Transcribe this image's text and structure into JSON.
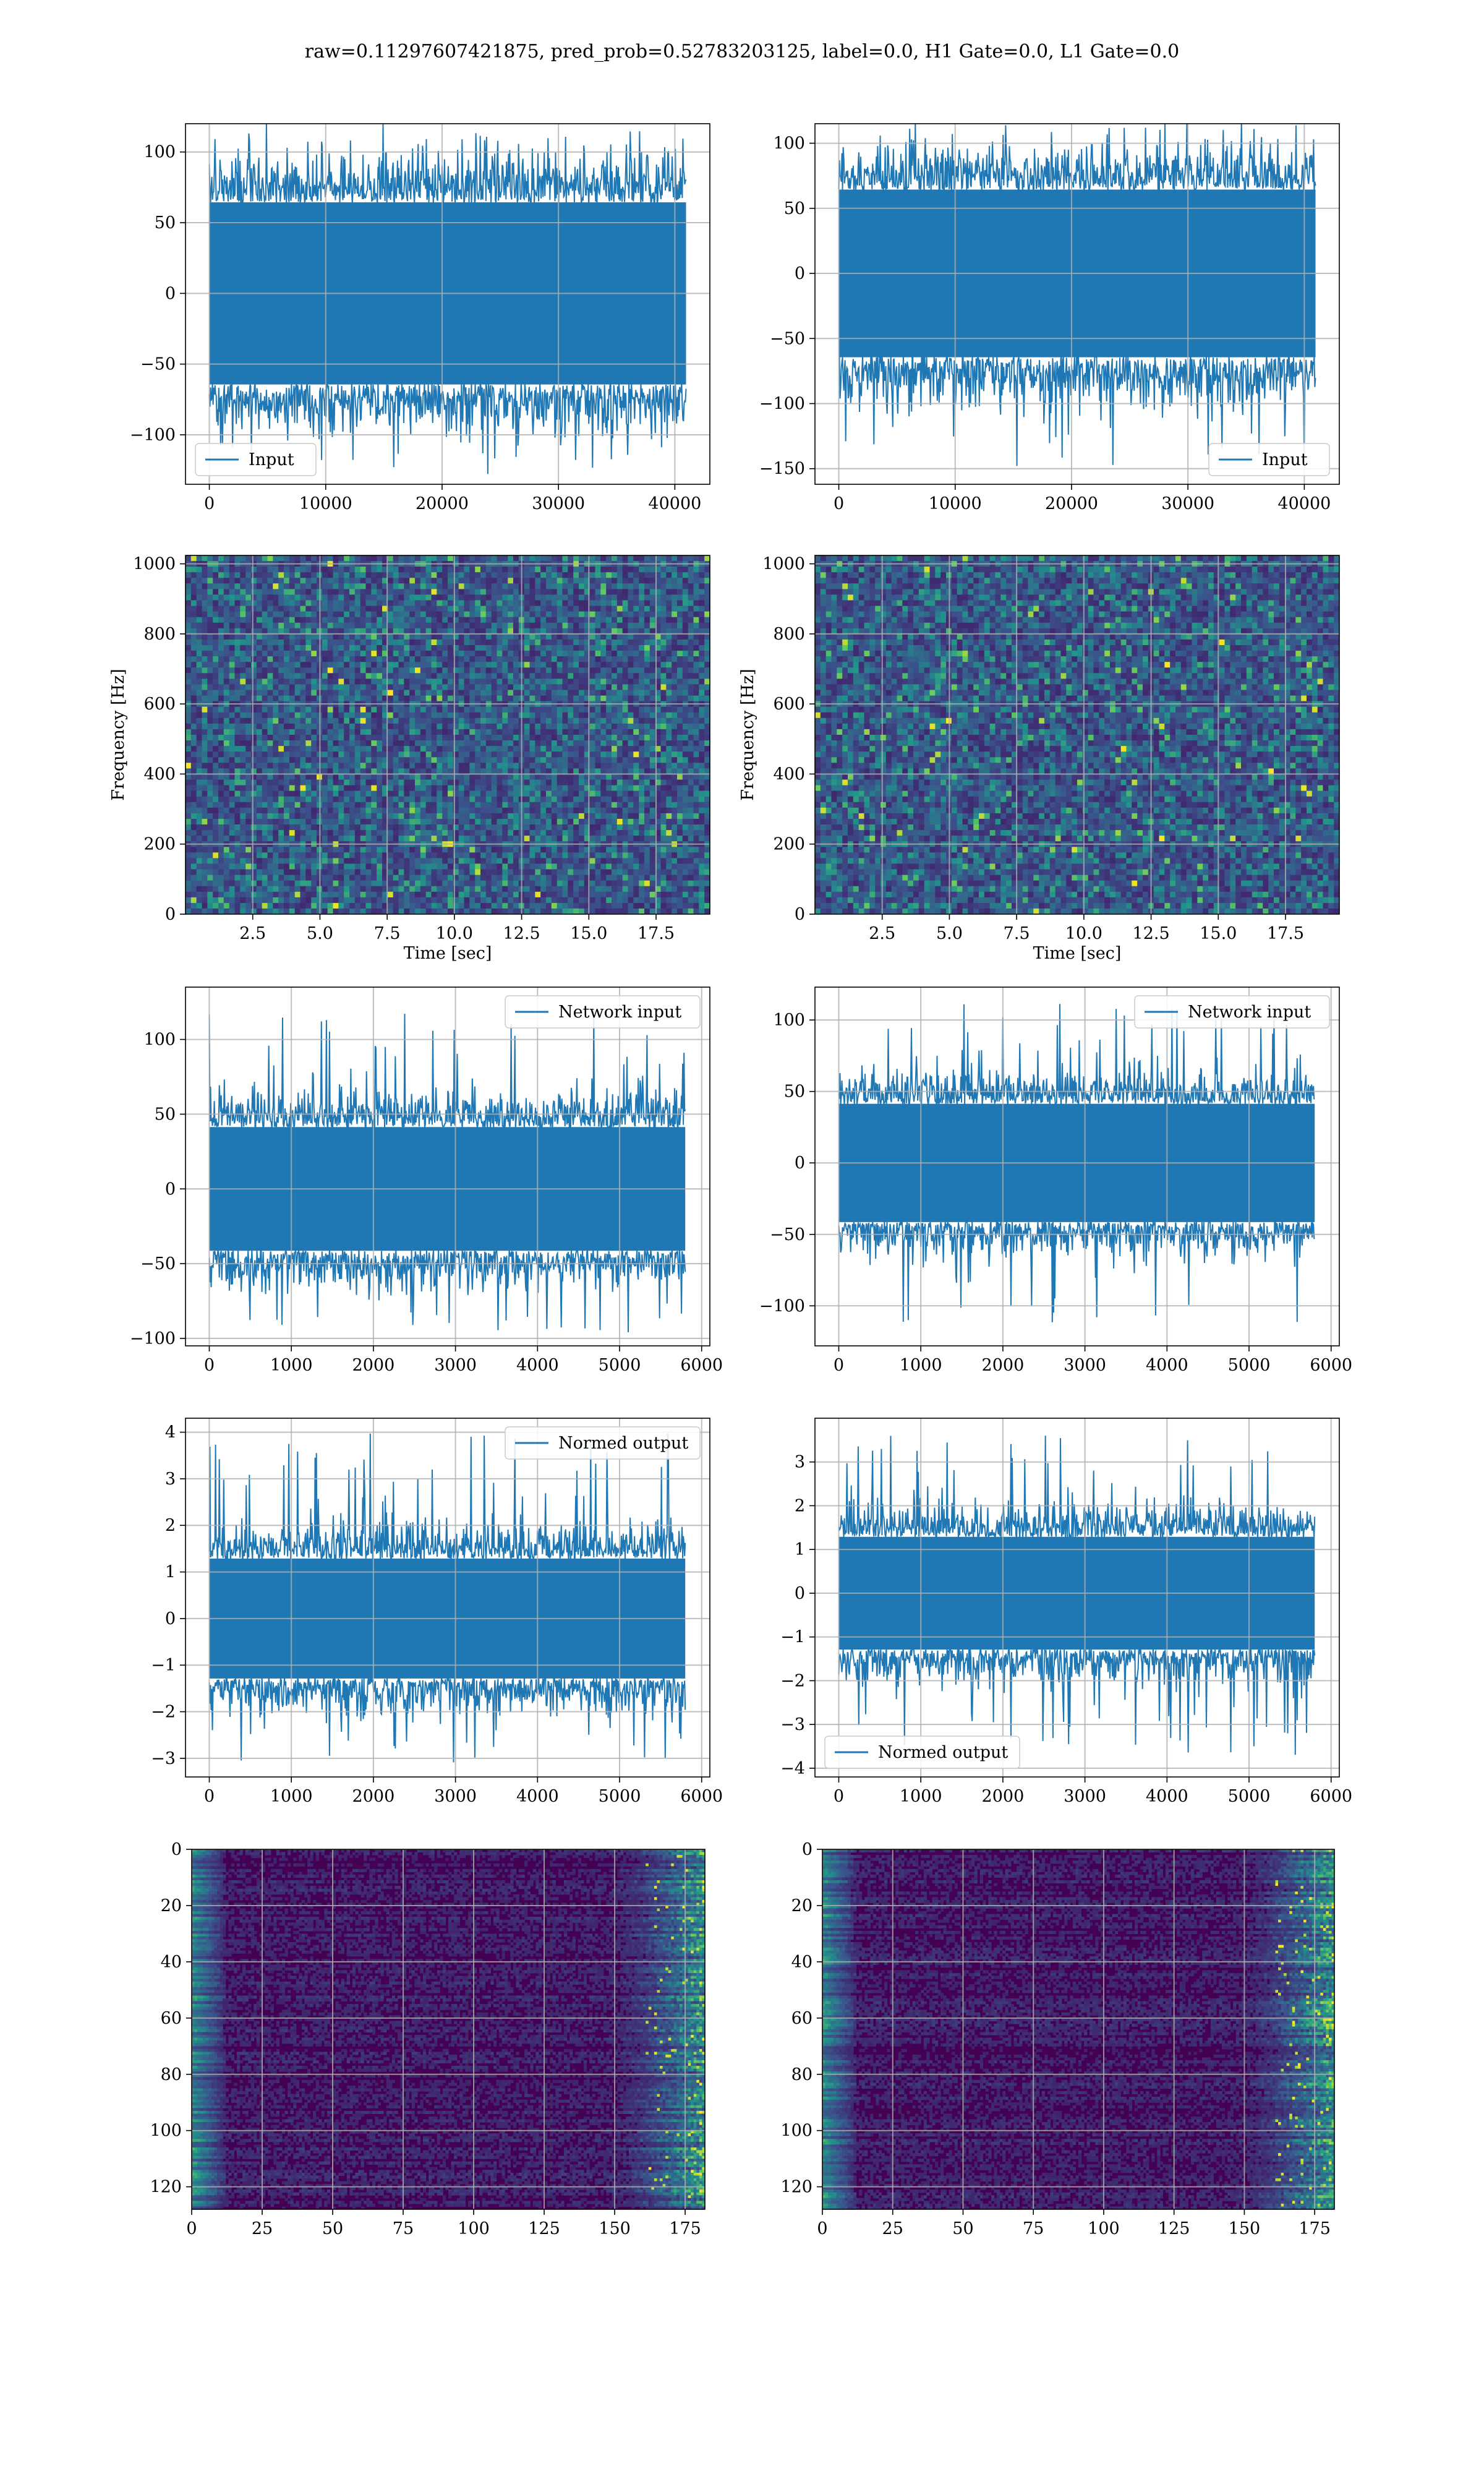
{
  "title": "raw=0.11297607421875, pred_prob=0.52783203125, label=0.0, H1 Gate=0.0, L1 Gate=0.0",
  "colors": {
    "line": "#1f77b4",
    "grid": "#b0b0b0",
    "viridis_dark": "#440154",
    "viridis_mid": "#21918c",
    "viridis_bright": "#fde725"
  },
  "chart_data": [
    {
      "id": "input-h1",
      "type": "line",
      "legend": "Input",
      "legend_loc": "lower left",
      "xlim": [
        -2048,
        43008
      ],
      "ylim": [
        -135,
        120
      ],
      "xticks": [
        0,
        10000,
        20000,
        30000,
        40000
      ],
      "yticks": [
        -100,
        -50,
        0,
        50,
        100
      ],
      "grid": true,
      "series": [
        {
          "name": "Input",
          "n_points": 40960,
          "envelope": [
            -70,
            70
          ],
          "peak_range": [
            -125,
            115
          ]
        }
      ]
    },
    {
      "id": "input-l1",
      "type": "line",
      "legend": "Input",
      "legend_loc": "lower right",
      "xlim": [
        -2048,
        43008
      ],
      "ylim": [
        -162,
        115
      ],
      "xticks": [
        0,
        10000,
        20000,
        30000,
        40000
      ],
      "yticks": [
        -150,
        -100,
        -50,
        0,
        50,
        100
      ],
      "grid": true,
      "series": [
        {
          "name": "Input",
          "n_points": 40960,
          "envelope": [
            -70,
            70
          ],
          "peak_range": [
            -150,
            118
          ]
        }
      ]
    },
    {
      "id": "spectrogram-h1",
      "type": "heatmap",
      "xlabel": "Time [sec]",
      "ylabel": "Frequency [Hz]",
      "xlim": [
        0,
        19.5
      ],
      "ylim": [
        0,
        1024
      ],
      "xticks": [
        2.5,
        5.0,
        7.5,
        10.0,
        12.5,
        15.0,
        17.5
      ],
      "yticks": [
        0,
        200,
        400,
        600,
        800,
        1000
      ],
      "grid": true,
      "colormap": "viridis"
    },
    {
      "id": "spectrogram-l1",
      "type": "heatmap",
      "xlabel": "Time [sec]",
      "ylabel": "Frequency [Hz]",
      "xlim": [
        0,
        19.5
      ],
      "ylim": [
        0,
        1024
      ],
      "xticks": [
        2.5,
        5.0,
        7.5,
        10.0,
        12.5,
        15.0,
        17.5
      ],
      "yticks": [
        0,
        200,
        400,
        600,
        800,
        1000
      ],
      "grid": true,
      "colormap": "viridis"
    },
    {
      "id": "network-input-h1",
      "type": "line",
      "legend": "Network input",
      "legend_loc": "upper right",
      "xlim": [
        -290,
        6100
      ],
      "ylim": [
        -105,
        135
      ],
      "xticks": [
        0,
        1000,
        2000,
        3000,
        4000,
        5000,
        6000
      ],
      "yticks": [
        -100,
        -50,
        0,
        50,
        100
      ],
      "grid": true,
      "series": [
        {
          "name": "Network input",
          "n_points": 5800,
          "envelope": [
            -45,
            45
          ],
          "peak_range": [
            -97,
            125
          ]
        }
      ]
    },
    {
      "id": "network-input-l1",
      "type": "line",
      "legend": "Network input",
      "legend_loc": "upper right",
      "xlim": [
        -290,
        6100
      ],
      "ylim": [
        -128,
        123
      ],
      "xticks": [
        0,
        1000,
        2000,
        3000,
        4000,
        5000,
        6000
      ],
      "yticks": [
        -100,
        -50,
        0,
        50,
        100
      ],
      "grid": true,
      "series": [
        {
          "name": "Network input",
          "n_points": 5800,
          "envelope": [
            -45,
            45
          ],
          "peak_range": [
            -113,
            114
          ]
        }
      ]
    },
    {
      "id": "normed-output-h1",
      "type": "line",
      "legend": "Normed output",
      "legend_loc": "upper right",
      "xlim": [
        -290,
        6100
      ],
      "ylim": [
        -3.4,
        4.3
      ],
      "xticks": [
        0,
        1000,
        2000,
        3000,
        4000,
        5000,
        6000
      ],
      "yticks": [
        -3,
        -2,
        -1,
        0,
        1,
        2,
        3,
        4
      ],
      "grid": true,
      "series": [
        {
          "name": "Normed output",
          "n_points": 5800,
          "envelope": [
            -1.4,
            1.4
          ],
          "peak_range": [
            -3.1,
            4.0
          ]
        }
      ]
    },
    {
      "id": "normed-output-l1",
      "type": "line",
      "legend": "Normed output",
      "legend_loc": "lower left",
      "xlim": [
        -290,
        6100
      ],
      "ylim": [
        -4.2,
        4.0
      ],
      "xticks": [
        0,
        1000,
        2000,
        3000,
        4000,
        5000,
        6000
      ],
      "yticks": [
        -4,
        -3,
        -2,
        -1,
        0,
        1,
        2,
        3
      ],
      "grid": true,
      "series": [
        {
          "name": "Normed output",
          "n_points": 5800,
          "envelope": [
            -1.4,
            1.4
          ],
          "peak_range": [
            -3.7,
            3.6
          ]
        }
      ]
    },
    {
      "id": "feature-map-h1",
      "type": "heatmap",
      "xlim": [
        0,
        182
      ],
      "ylim": [
        128,
        0
      ],
      "xticks": [
        0,
        25,
        50,
        75,
        100,
        125,
        150,
        175
      ],
      "yticks": [
        0,
        20,
        40,
        60,
        80,
        100,
        120
      ],
      "grid": true,
      "colormap": "viridis"
    },
    {
      "id": "feature-map-l1",
      "type": "heatmap",
      "xlim": [
        0,
        182
      ],
      "ylim": [
        128,
        0
      ],
      "xticks": [
        0,
        25,
        50,
        75,
        100,
        125,
        150,
        175
      ],
      "yticks": [
        0,
        20,
        40,
        60,
        80,
        100,
        120
      ],
      "grid": true,
      "colormap": "viridis"
    }
  ]
}
